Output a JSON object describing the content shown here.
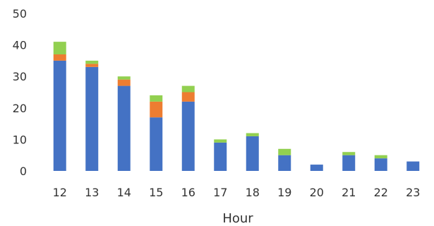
{
  "chart_data": {
    "type": "bar",
    "stacked": true,
    "title": "",
    "xlabel": "Hour",
    "ylabel": "",
    "ylim": [
      0,
      50
    ],
    "yticks": [
      0,
      10,
      20,
      30,
      40,
      50
    ],
    "grid": false,
    "legend": "none",
    "categories": [
      "12",
      "13",
      "14",
      "15",
      "16",
      "17",
      "18",
      "19",
      "20",
      "21",
      "22",
      "23"
    ],
    "series": [
      {
        "color": "#4472c4",
        "values": [
          35,
          33,
          27,
          17,
          22,
          9,
          11,
          5,
          2,
          5,
          4,
          3
        ]
      },
      {
        "color": "#ed7d31",
        "values": [
          2,
          1,
          2,
          5,
          3,
          0,
          0,
          0,
          0,
          0,
          0,
          0
        ]
      },
      {
        "color": "#92d050",
        "values": [
          4,
          1,
          1,
          2,
          2,
          1,
          1,
          2,
          0,
          1,
          1,
          0
        ]
      }
    ]
  }
}
